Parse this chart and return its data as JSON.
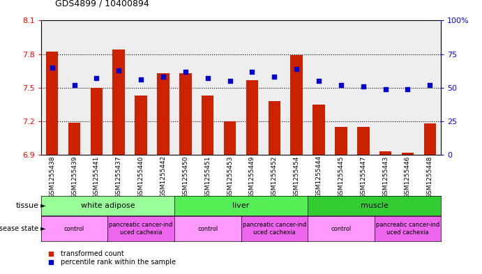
{
  "title": "GDS4899 / 10400894",
  "samples": [
    "GSM1255438",
    "GSM1255439",
    "GSM1255441",
    "GSM1255437",
    "GSM1255440",
    "GSM1255442",
    "GSM1255450",
    "GSM1255451",
    "GSM1255453",
    "GSM1255449",
    "GSM1255452",
    "GSM1255454",
    "GSM1255444",
    "GSM1255445",
    "GSM1255447",
    "GSM1255443",
    "GSM1255446",
    "GSM1255448"
  ],
  "bar_values": [
    7.82,
    7.19,
    7.5,
    7.84,
    7.43,
    7.63,
    7.63,
    7.43,
    7.2,
    7.57,
    7.38,
    7.79,
    7.35,
    7.15,
    7.15,
    6.93,
    6.92,
    7.18
  ],
  "percentile_values": [
    65,
    52,
    57,
    63,
    56,
    58,
    62,
    57,
    55,
    62,
    58,
    64,
    55,
    52,
    51,
    49,
    49,
    52
  ],
  "bar_color": "#CC2200",
  "dot_color": "#0000CC",
  "ylim_left": [
    6.9,
    8.1
  ],
  "ylim_right": [
    0,
    100
  ],
  "yticks_left": [
    6.9,
    7.2,
    7.5,
    7.8,
    8.1
  ],
  "yticks_right": [
    0,
    25,
    50,
    75,
    100
  ],
  "ytick_labels_right": [
    "0",
    "25",
    "50",
    "75",
    "100%"
  ],
  "hlines": [
    7.8,
    7.5,
    7.2
  ],
  "tissue_groups": [
    {
      "label": "white adipose",
      "start": 0,
      "end": 6,
      "color": "#99FF99"
    },
    {
      "label": "liver",
      "start": 6,
      "end": 12,
      "color": "#55EE55"
    },
    {
      "label": "muscle",
      "start": 12,
      "end": 18,
      "color": "#33CC33"
    }
  ],
  "disease_groups": [
    {
      "label": "control",
      "start": 0,
      "end": 3,
      "color": "#FF99FF"
    },
    {
      "label": "pancreatic cancer-ind\nuced cachexia",
      "start": 3,
      "end": 6,
      "color": "#EE66EE"
    },
    {
      "label": "control",
      "start": 6,
      "end": 9,
      "color": "#FF99FF"
    },
    {
      "label": "pancreatic cancer-ind\nuced cachexia",
      "start": 9,
      "end": 12,
      "color": "#EE66EE"
    },
    {
      "label": "control",
      "start": 12,
      "end": 15,
      "color": "#FF99FF"
    },
    {
      "label": "pancreatic cancer-ind\nuced cachexia",
      "start": 15,
      "end": 18,
      "color": "#EE66EE"
    }
  ],
  "bar_width": 0.55,
  "plot_bg_color": "#EEEEEE",
  "xtick_bg_color": "#CCCCCC"
}
